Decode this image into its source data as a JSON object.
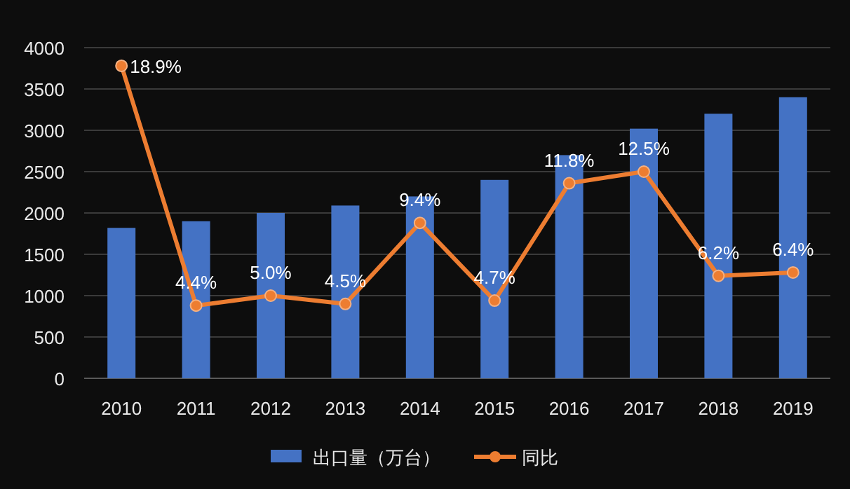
{
  "chart_data": {
    "type": "bar",
    "categories": [
      "2010",
      "2011",
      "2012",
      "2013",
      "2014",
      "2015",
      "2016",
      "2017",
      "2018",
      "2019"
    ],
    "series": [
      {
        "name": "出口量（万台）",
        "color": "#4472c4",
        "values": [
          1820,
          1900,
          2000,
          2090,
          2200,
          2400,
          2700,
          3020,
          3200,
          3400
        ]
      },
      {
        "name": "同比",
        "type": "line",
        "axis": "y2",
        "color": "#ed7d31",
        "marker": "circle",
        "values": [
          18.9,
          4.4,
          5.0,
          4.5,
          9.4,
          4.7,
          11.8,
          12.5,
          6.2,
          6.4
        ],
        "value_labels": [
          "18.9%",
          "4.4%",
          "5.0%",
          "4.5%",
          "9.4%",
          "4.7%",
          "11.8%",
          "12.5%",
          "6.2%",
          "6.4%"
        ]
      }
    ],
    "ylim": [
      0,
      4000
    ],
    "yticks": [
      0,
      500,
      1000,
      1500,
      2000,
      2500,
      3000,
      3500,
      4000
    ],
    "y2lim": [
      0,
      20
    ],
    "grid": "y",
    "legend": "bottom"
  }
}
